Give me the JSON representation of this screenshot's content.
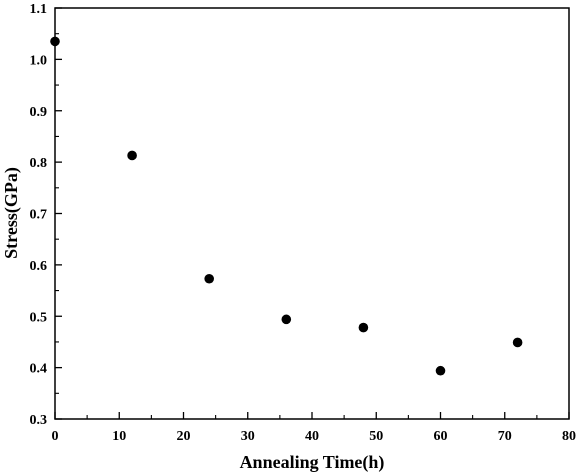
{
  "chart_data": {
    "type": "scatter",
    "title": "",
    "xlabel": "Annealing Time(h)",
    "ylabel": "Stress(GPa)",
    "xlim": [
      0,
      80
    ],
    "ylim": [
      0.3,
      1.1
    ],
    "x_ticks": [
      "0",
      "10",
      "20",
      "30",
      "40",
      "50",
      "60",
      "70",
      "80"
    ],
    "y_ticks": [
      "0.3",
      "0.4",
      "0.5",
      "0.6",
      "0.7",
      "0.8",
      "0.9",
      "1.0",
      "1.1"
    ],
    "grid": false,
    "legend": "none",
    "marker_color": "#000000",
    "points": [
      {
        "x": 0,
        "y": 1.035
      },
      {
        "x": 12,
        "y": 0.813
      },
      {
        "x": 24,
        "y": 0.573
      },
      {
        "x": 36,
        "y": 0.494
      },
      {
        "x": 48,
        "y": 0.478
      },
      {
        "x": 60,
        "y": 0.394
      },
      {
        "x": 72,
        "y": 0.449
      }
    ]
  }
}
